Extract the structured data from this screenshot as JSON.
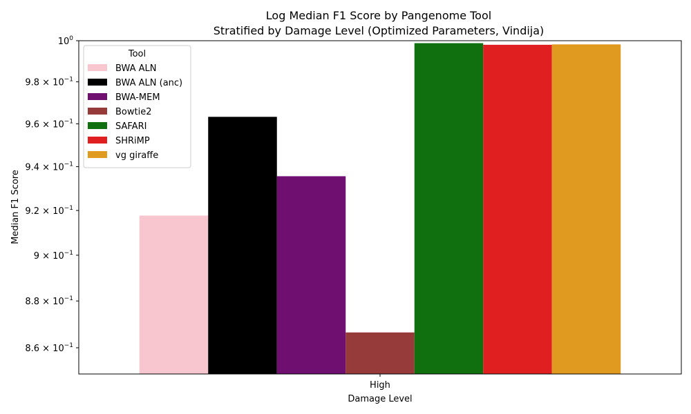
{
  "chart_data": {
    "type": "bar",
    "title": "Log Median F1 Score by Pangenome Tool",
    "subtitle": "Stratified by Damage Level (Optimized Parameters, Vindija)",
    "xlabel": "Damage Level",
    "ylabel": "Median F1 Score",
    "yscale": "log",
    "ylim": [
      0.849,
      1.0
    ],
    "categories": [
      "High"
    ],
    "y_ticks": [
      {
        "value": 0.86,
        "mantissa": "8.6",
        "base": "10",
        "exp": "−1"
      },
      {
        "value": 0.88,
        "mantissa": "8.8",
        "base": "10",
        "exp": "−1"
      },
      {
        "value": 0.9,
        "mantissa": "9",
        "base": "10",
        "exp": "−1"
      },
      {
        "value": 0.92,
        "mantissa": "9.2",
        "base": "10",
        "exp": "−1"
      },
      {
        "value": 0.94,
        "mantissa": "9.4",
        "base": "10",
        "exp": "−1"
      },
      {
        "value": 0.96,
        "mantissa": "9.6",
        "base": "10",
        "exp": "−1"
      },
      {
        "value": 0.98,
        "mantissa": "9.8",
        "base": "10",
        "exp": "−1"
      },
      {
        "value": 1.0,
        "mantissa": "",
        "base": "10",
        "exp": "0"
      }
    ],
    "legend": {
      "title": "Tool",
      "position": "top-left"
    },
    "grid": false,
    "series": [
      {
        "name": "BWA ALN",
        "color": "#f7c6cf",
        "values": [
          0.9177
        ]
      },
      {
        "name": "BWA ALN (anc)",
        "color": "#000000",
        "values": [
          0.9633
        ]
      },
      {
        "name": "BWA-MEM",
        "color": "#6f0f6f",
        "values": [
          0.9356
        ]
      },
      {
        "name": "Bowtie2",
        "color": "#973a3a",
        "values": [
          0.8665
        ]
      },
      {
        "name": "SAFARI",
        "color": "#107010",
        "values": [
          0.9988
        ]
      },
      {
        "name": "SHRiMP",
        "color": "#e02020",
        "values": [
          0.998
        ]
      },
      {
        "name": "vg giraffe",
        "color": "#e09a20",
        "values": [
          0.9982
        ]
      }
    ]
  }
}
